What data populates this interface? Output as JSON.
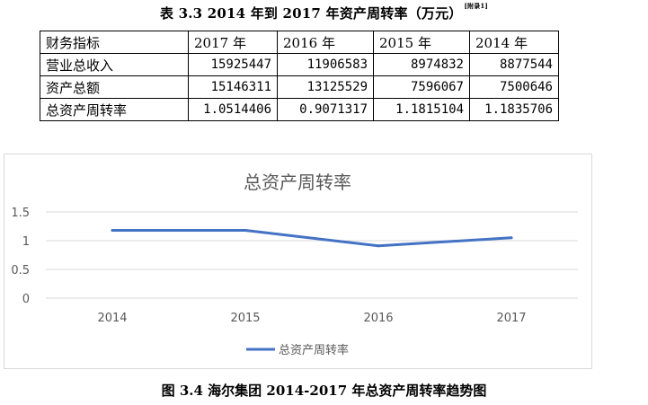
{
  "table": {
    "title": "表 3.3  2014 年到 2017 年资产周转率（万元）",
    "title_note": "[附录1]",
    "header": [
      "财务指标",
      "2017 年",
      "2016 年",
      "2015 年",
      "2014 年"
    ],
    "rows": [
      [
        "营业总收入",
        "15925447",
        "11906583",
        "8974832",
        "8877544"
      ],
      [
        "资产总额",
        "15146311",
        "13125529",
        "7596067",
        "7500646"
      ],
      [
        "总资产周转率",
        "1.0514406",
        "0.9071317",
        "1.1815104",
        "1.1835706"
      ]
    ]
  },
  "chart_data": {
    "type": "line",
    "title": "总资产周转率",
    "categories": [
      "2014",
      "2015",
      "2016",
      "2017"
    ],
    "series": [
      {
        "name": "总资产周转率",
        "values": [
          1.18,
          1.18,
          0.91,
          1.05
        ],
        "color": "#4472c4"
      }
    ],
    "yticks": [
      "0",
      "0.5",
      "1",
      "1.5"
    ],
    "ylim": [
      0,
      1.5
    ],
    "grid": true,
    "legend": "bottom"
  },
  "figure_caption": "图 3.4 海尔集团 2014-2017 年总资产周转率趋势图"
}
